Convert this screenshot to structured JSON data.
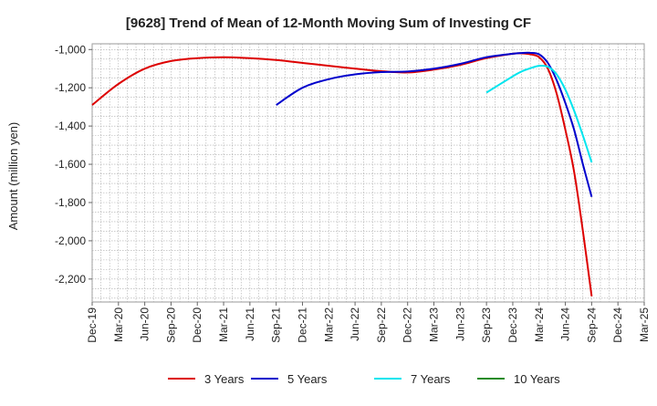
{
  "chart_data": {
    "type": "line",
    "title": "[9628]  Trend of Mean of 12-Month Moving Sum of Investing CF",
    "ylabel": "Amount (million yen)",
    "xlabel": "",
    "x_ticks": [
      "Dec-19",
      "Mar-20",
      "Jun-20",
      "Sep-20",
      "Dec-20",
      "Mar-21",
      "Jun-21",
      "Sep-21",
      "Dec-21",
      "Mar-22",
      "Jun-22",
      "Sep-22",
      "Dec-22",
      "Mar-23",
      "Jun-23",
      "Sep-23",
      "Dec-23",
      "Mar-24",
      "Jun-24",
      "Sep-24",
      "Dec-24",
      "Mar-25"
    ],
    "y_ticks": [
      -1000,
      -1200,
      -1400,
      -1600,
      -1800,
      -2000,
      -2200
    ],
    "y_tick_labels": [
      "-1,000",
      "-1,200",
      "-1,400",
      "-1,600",
      "-1,800",
      "-2,000",
      "-2,200"
    ],
    "ylim": [
      -2320,
      -970
    ],
    "xlim": [
      "2019-12",
      "2025-03"
    ],
    "grid": true,
    "legend_position": "bottom",
    "series": [
      {
        "name": "3 Years",
        "color": "#dd0000",
        "points": [
          [
            "2019-12",
            -1290
          ],
          [
            "2020-03",
            -1180
          ],
          [
            "2020-06",
            -1100
          ],
          [
            "2020-09",
            -1060
          ],
          [
            "2020-12",
            -1045
          ],
          [
            "2021-03",
            -1040
          ],
          [
            "2021-06",
            -1045
          ],
          [
            "2021-09",
            -1055
          ],
          [
            "2021-12",
            -1070
          ],
          [
            "2022-03",
            -1085
          ],
          [
            "2022-06",
            -1100
          ],
          [
            "2022-09",
            -1113
          ],
          [
            "2022-12",
            -1120
          ],
          [
            "2023-03",
            -1105
          ],
          [
            "2023-06",
            -1080
          ],
          [
            "2023-09",
            -1045
          ],
          [
            "2023-12",
            -1022
          ],
          [
            "2024-01",
            -1020
          ],
          [
            "2024-02",
            -1025
          ],
          [
            "2024-03",
            -1040
          ],
          [
            "2024-04",
            -1100
          ],
          [
            "2024-05",
            -1230
          ],
          [
            "2024-06",
            -1420
          ],
          [
            "2024-07",
            -1640
          ],
          [
            "2024-08",
            -1950
          ],
          [
            "2024-09",
            -2290
          ]
        ]
      },
      {
        "name": "5 Years",
        "color": "#0000cc",
        "points": [
          [
            "2021-09",
            -1290
          ],
          [
            "2021-12",
            -1200
          ],
          [
            "2022-03",
            -1155
          ],
          [
            "2022-06",
            -1130
          ],
          [
            "2022-09",
            -1118
          ],
          [
            "2022-12",
            -1115
          ],
          [
            "2023-03",
            -1100
          ],
          [
            "2023-06",
            -1075
          ],
          [
            "2023-09",
            -1040
          ],
          [
            "2023-12",
            -1022
          ],
          [
            "2024-01",
            -1018
          ],
          [
            "2024-02",
            -1017
          ],
          [
            "2024-03",
            -1025
          ],
          [
            "2024-04",
            -1070
          ],
          [
            "2024-05",
            -1160
          ],
          [
            "2024-06",
            -1280
          ],
          [
            "2024-07",
            -1420
          ],
          [
            "2024-08",
            -1600
          ],
          [
            "2024-09",
            -1770
          ]
        ]
      },
      {
        "name": "7 Years",
        "color": "#00e5ee",
        "points": [
          [
            "2023-09",
            -1225
          ],
          [
            "2023-12",
            -1140
          ],
          [
            "2024-01",
            -1115
          ],
          [
            "2024-02",
            -1098
          ],
          [
            "2024-03",
            -1085
          ],
          [
            "2024-04",
            -1090
          ],
          [
            "2024-05",
            -1130
          ],
          [
            "2024-06",
            -1210
          ],
          [
            "2024-07",
            -1320
          ],
          [
            "2024-08",
            -1450
          ],
          [
            "2024-09",
            -1590
          ]
        ]
      },
      {
        "name": "10 Years",
        "color": "#228b22",
        "points": []
      }
    ]
  }
}
